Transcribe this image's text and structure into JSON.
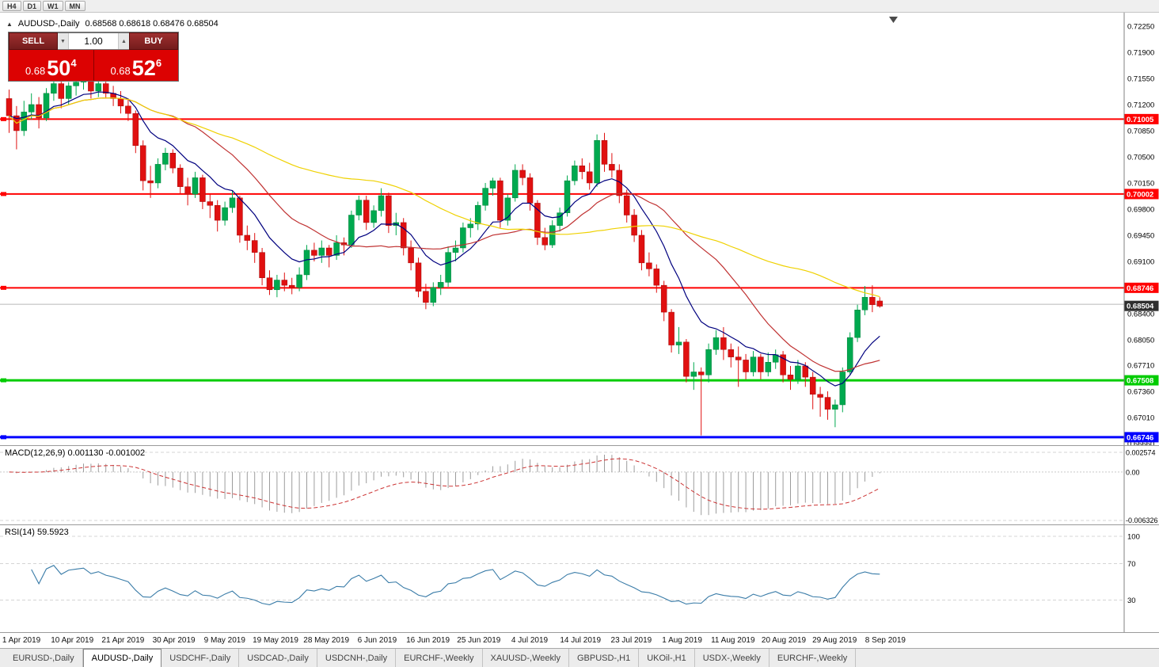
{
  "window": {
    "timeframes": [
      "H4",
      "D1",
      "W1",
      "MN"
    ],
    "title": "AUDUSD-,Daily",
    "ohlc": "0.68568 0.68618 0.68476 0.68504"
  },
  "icons": {
    "panel_toggle": "▲",
    "vol_up": "▲",
    "vol_down": "▼"
  },
  "trade_panel": {
    "sell_label": "SELL",
    "buy_label": "BUY",
    "volume": "1.00",
    "sell_price": {
      "prefix": "0.68",
      "big": "50",
      "sup": "4"
    },
    "buy_price": {
      "prefix": "0.68",
      "big": "52",
      "sup": "6"
    }
  },
  "chart_data": {
    "type": "candlestick",
    "symbol": "AUDUSD",
    "timeframe": "Daily",
    "ylim": [
      0.66639,
      0.7243
    ],
    "up_color": "#00A94F",
    "down_color": "#E01010",
    "y_axis_labels": [
      "0.72250",
      "0.71900",
      "0.71550",
      "0.71200",
      "0.70850",
      "0.70500",
      "0.70150",
      "0.69800",
      "0.69450",
      "0.69100",
      "0.68750",
      "0.68400",
      "0.68050",
      "0.67710",
      "0.67360",
      "0.67010",
      "0.66660"
    ],
    "x_axis_labels": [
      "1 Apr 2019",
      "10 Apr 2019",
      "21 Apr 2019",
      "30 Apr 2019",
      "9 May 2019",
      "19 May 2019",
      "28 May 2019",
      "6 Jun 2019",
      "16 Jun 2019",
      "25 Jun 2019",
      "4 Jul 2019",
      "14 Jul 2019",
      "23 Jul 2019",
      "1 Aug 2019",
      "11 Aug 2019",
      "20 Aug 2019",
      "29 Aug 2019",
      "8 Sep 2019"
    ],
    "hlines": [
      {
        "value": 0.71005,
        "label": "0.71005",
        "color": "#FF0000",
        "width": 2
      },
      {
        "value": 0.70002,
        "label": "0.70002",
        "color": "#FF0000",
        "width": 2
      },
      {
        "value": 0.68746,
        "label": "0.68746",
        "color": "#FF0000",
        "width": 2
      },
      {
        "value": 0.67508,
        "label": "0.67508",
        "color": "#00CC00",
        "width": 3
      },
      {
        "value": 0.66746,
        "label": "0.66746",
        "color": "#0000FF",
        "width": 3
      }
    ],
    "gray_price_line": 0.68526,
    "current_price": {
      "value": 0.68504,
      "label": "0.68504",
      "tag_color": "#2f2f2f"
    },
    "moving_averages": [
      {
        "period": 10,
        "type": "ema",
        "color": "#00007F"
      },
      {
        "period": 21,
        "type": "sma",
        "color": "#C03232"
      },
      {
        "period": 50,
        "type": "sma",
        "color": "#EFD100"
      }
    ],
    "candles": [
      [
        0.7128,
        0.714,
        0.7082,
        0.7105
      ],
      [
        0.7105,
        0.7118,
        0.706,
        0.7085
      ],
      [
        0.7085,
        0.7125,
        0.7078,
        0.711
      ],
      [
        0.711,
        0.7135,
        0.71,
        0.712
      ],
      [
        0.712,
        0.713,
        0.7088,
        0.7102
      ],
      [
        0.7102,
        0.7142,
        0.7098,
        0.7135
      ],
      [
        0.7135,
        0.7155,
        0.7125,
        0.7148
      ],
      [
        0.7148,
        0.7155,
        0.7115,
        0.7128
      ],
      [
        0.7128,
        0.715,
        0.712,
        0.7145
      ],
      [
        0.7145,
        0.7158,
        0.7132,
        0.715
      ],
      [
        0.715,
        0.7162,
        0.714,
        0.7155
      ],
      [
        0.7155,
        0.716,
        0.7128,
        0.7138
      ],
      [
        0.7138,
        0.7155,
        0.713,
        0.7148
      ],
      [
        0.7148,
        0.7158,
        0.7128,
        0.7135
      ],
      [
        0.7135,
        0.7145,
        0.7118,
        0.7128
      ],
      [
        0.7128,
        0.7138,
        0.7108,
        0.7118
      ],
      [
        0.7118,
        0.7128,
        0.7098,
        0.7108
      ],
      [
        0.7108,
        0.7112,
        0.7055,
        0.7065
      ],
      [
        0.7065,
        0.7072,
        0.7005,
        0.7018
      ],
      [
        0.7018,
        0.7038,
        0.6995,
        0.7015
      ],
      [
        0.7015,
        0.7048,
        0.7008,
        0.704
      ],
      [
        0.704,
        0.7062,
        0.7032,
        0.7055
      ],
      [
        0.7055,
        0.706,
        0.7028,
        0.7035
      ],
      [
        0.7035,
        0.704,
        0.7,
        0.701
      ],
      [
        0.701,
        0.7022,
        0.6985,
        0.7
      ],
      [
        0.7,
        0.703,
        0.6995,
        0.7022
      ],
      [
        0.7022,
        0.7026,
        0.698,
        0.699
      ],
      [
        0.699,
        0.7,
        0.6968,
        0.6985
      ],
      [
        0.6985,
        0.6992,
        0.695,
        0.6965
      ],
      [
        0.6965,
        0.699,
        0.6958,
        0.6982
      ],
      [
        0.6982,
        0.7005,
        0.6975,
        0.6995
      ],
      [
        0.6995,
        0.6998,
        0.6935,
        0.6945
      ],
      [
        0.6945,
        0.6958,
        0.6925,
        0.6938
      ],
      [
        0.6938,
        0.6948,
        0.6908,
        0.6922
      ],
      [
        0.6922,
        0.6928,
        0.6878,
        0.6888
      ],
      [
        0.6888,
        0.6898,
        0.6865,
        0.6872
      ],
      [
        0.6872,
        0.6892,
        0.6862,
        0.6885
      ],
      [
        0.6885,
        0.6895,
        0.687,
        0.6878
      ],
      [
        0.6878,
        0.6888,
        0.6866,
        0.6875
      ],
      [
        0.6875,
        0.6902,
        0.687,
        0.6892
      ],
      [
        0.6892,
        0.6932,
        0.6885,
        0.6925
      ],
      [
        0.6925,
        0.6935,
        0.691,
        0.6918
      ],
      [
        0.6918,
        0.6938,
        0.6908,
        0.6928
      ],
      [
        0.6928,
        0.6932,
        0.6902,
        0.6918
      ],
      [
        0.6918,
        0.6945,
        0.6912,
        0.6935
      ],
      [
        0.6935,
        0.6942,
        0.6918,
        0.6932
      ],
      [
        0.6932,
        0.6978,
        0.6928,
        0.6972
      ],
      [
        0.6972,
        0.6998,
        0.6965,
        0.6992
      ],
      [
        0.6992,
        0.6998,
        0.6952,
        0.6962
      ],
      [
        0.6962,
        0.6985,
        0.6955,
        0.6978
      ],
      [
        0.6978,
        0.7008,
        0.697,
        0.6998
      ],
      [
        0.6998,
        0.7002,
        0.6948,
        0.6958
      ],
      [
        0.6958,
        0.6975,
        0.6945,
        0.6962
      ],
      [
        0.6962,
        0.6968,
        0.6918,
        0.6928
      ],
      [
        0.6928,
        0.6938,
        0.6898,
        0.6908
      ],
      [
        0.6908,
        0.6915,
        0.6862,
        0.687
      ],
      [
        0.687,
        0.688,
        0.6846,
        0.6855
      ],
      [
        0.6855,
        0.6882,
        0.685,
        0.6875
      ],
      [
        0.6875,
        0.6892,
        0.6865,
        0.6882
      ],
      [
        0.6882,
        0.693,
        0.6876,
        0.6922
      ],
      [
        0.6922,
        0.6938,
        0.691,
        0.6928
      ],
      [
        0.6928,
        0.6962,
        0.6922,
        0.6955
      ],
      [
        0.6955,
        0.6968,
        0.6942,
        0.696
      ],
      [
        0.696,
        0.699,
        0.6952,
        0.6985
      ],
      [
        0.6985,
        0.7015,
        0.6978,
        0.7008
      ],
      [
        0.7008,
        0.7022,
        0.6998,
        0.7018
      ],
      [
        0.7018,
        0.7022,
        0.6955,
        0.6965
      ],
      [
        0.6965,
        0.7,
        0.6958,
        0.6995
      ],
      [
        0.6995,
        0.704,
        0.699,
        0.7032
      ],
      [
        0.7032,
        0.704,
        0.7012,
        0.7022
      ],
      [
        0.7022,
        0.7028,
        0.6978,
        0.6988
      ],
      [
        0.6988,
        0.6992,
        0.6932,
        0.6942
      ],
      [
        0.6942,
        0.6955,
        0.6925,
        0.6932
      ],
      [
        0.6932,
        0.6965,
        0.6928,
        0.6958
      ],
      [
        0.6958,
        0.6982,
        0.695,
        0.6975
      ],
      [
        0.6975,
        0.7025,
        0.697,
        0.7018
      ],
      [
        0.7018,
        0.7045,
        0.7012,
        0.7038
      ],
      [
        0.7038,
        0.7048,
        0.702,
        0.703
      ],
      [
        0.703,
        0.7042,
        0.7006,
        0.7015
      ],
      [
        0.7015,
        0.708,
        0.701,
        0.7072
      ],
      [
        0.7072,
        0.7082,
        0.703,
        0.704
      ],
      [
        0.704,
        0.7055,
        0.7022,
        0.7032
      ],
      [
        0.7032,
        0.704,
        0.6988,
        0.6998
      ],
      [
        0.6998,
        0.7006,
        0.6962,
        0.6972
      ],
      [
        0.6972,
        0.698,
        0.6936,
        0.6945
      ],
      [
        0.6945,
        0.6952,
        0.6898,
        0.6908
      ],
      [
        0.6908,
        0.6922,
        0.689,
        0.69
      ],
      [
        0.69,
        0.6906,
        0.6868,
        0.6878
      ],
      [
        0.6878,
        0.6884,
        0.683,
        0.6842
      ],
      [
        0.6842,
        0.6846,
        0.6788,
        0.6798
      ],
      [
        0.6798,
        0.6822,
        0.6786,
        0.6802
      ],
      [
        0.6802,
        0.6806,
        0.6748,
        0.6756
      ],
      [
        0.6756,
        0.6775,
        0.6738,
        0.6762
      ],
      [
        0.6762,
        0.6768,
        0.6677,
        0.6758
      ],
      [
        0.6758,
        0.68,
        0.6748,
        0.6792
      ],
      [
        0.6792,
        0.6818,
        0.6785,
        0.6808
      ],
      [
        0.6808,
        0.6822,
        0.6778,
        0.6792
      ],
      [
        0.6792,
        0.68,
        0.6768,
        0.6782
      ],
      [
        0.6782,
        0.6796,
        0.6742,
        0.6778
      ],
      [
        0.6778,
        0.6786,
        0.6752,
        0.6762
      ],
      [
        0.6762,
        0.679,
        0.6756,
        0.6782
      ],
      [
        0.6782,
        0.6786,
        0.6752,
        0.6762
      ],
      [
        0.6762,
        0.6788,
        0.6756,
        0.6775
      ],
      [
        0.6775,
        0.6792,
        0.6766,
        0.6785
      ],
      [
        0.6785,
        0.679,
        0.6748,
        0.6758
      ],
      [
        0.6758,
        0.677,
        0.6738,
        0.6752
      ],
      [
        0.6752,
        0.6778,
        0.6746,
        0.677
      ],
      [
        0.677,
        0.6775,
        0.6742,
        0.6755
      ],
      [
        0.6755,
        0.6762,
        0.6712,
        0.6732
      ],
      [
        0.6732,
        0.6742,
        0.6702,
        0.6728
      ],
      [
        0.6728,
        0.6736,
        0.6698,
        0.6712
      ],
      [
        0.6712,
        0.6725,
        0.6688,
        0.6718
      ],
      [
        0.6718,
        0.6768,
        0.6708,
        0.6762
      ],
      [
        0.6762,
        0.6815,
        0.6758,
        0.6808
      ],
      [
        0.6808,
        0.6852,
        0.6802,
        0.6845
      ],
      [
        0.6845,
        0.6877,
        0.6838,
        0.6862
      ],
      [
        0.6862,
        0.6878,
        0.6842,
        0.6852
      ],
      [
        0.6857,
        0.6862,
        0.6848,
        0.685
      ]
    ]
  },
  "macd": {
    "label": "MACD(12,26,9) 0.001130 -0.001002",
    "params": [
      12,
      26,
      9
    ],
    "scale": {
      "max": 0.002574,
      "min": -0.006326
    },
    "scale_labels": [
      {
        "text": "0.002574",
        "value": 0.002574
      },
      {
        "text": "0.00",
        "value": 0
      },
      {
        "text": "-0.006326",
        "value": -0.006326
      }
    ],
    "histogram_color": "#9c9c9c",
    "signal_color": "#cc3333"
  },
  "rsi": {
    "label": "RSI(14) 59.5923",
    "period": 14,
    "value": 59.5923,
    "levels": [
      100,
      70,
      30
    ],
    "scale_labels": [
      {
        "text": "100",
        "value": 100
      },
      {
        "text": "70",
        "value": 70
      },
      {
        "text": "30",
        "value": 30
      }
    ],
    "line_color": "#3a7ca8"
  },
  "tabs": [
    {
      "label": "EURUSD-,Daily",
      "active": false
    },
    {
      "label": "AUDUSD-,Daily",
      "active": true
    },
    {
      "label": "USDCHF-,Daily",
      "active": false
    },
    {
      "label": "USDCAD-,Daily",
      "active": false
    },
    {
      "label": "USDCNH-,Daily",
      "active": false
    },
    {
      "label": "EURCHF-,Weekly",
      "active": false
    },
    {
      "label": "XAUUSD-,Weekly",
      "active": false
    },
    {
      "label": "GBPUSD-,H1",
      "active": false
    },
    {
      "label": "UKOil-,H1",
      "active": false
    },
    {
      "label": "USDX-,Weekly",
      "active": false
    },
    {
      "label": "EURCHF-,Weekly",
      "active": false
    }
  ]
}
